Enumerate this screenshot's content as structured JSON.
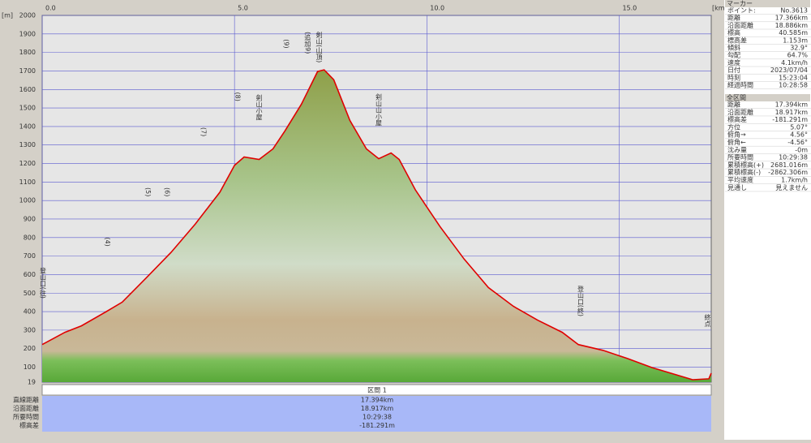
{
  "chart_data": {
    "type": "line",
    "x_label": "[km]",
    "y_label": "[m]",
    "x": [
      0,
      0.59,
      1.02,
      1.65,
      2.08,
      2.71,
      3.35,
      3.98,
      4.62,
      5.0,
      5.25,
      5.64,
      6.0,
      6.31,
      6.74,
      7.16,
      7.33,
      7.58,
      8.0,
      8.43,
      8.75,
      9.07,
      9.28,
      9.7,
      10.34,
      10.97,
      11.6,
      12.25,
      12.88,
      13.52,
      13.94,
      14.58,
      15.21,
      15.85,
      16.48,
      16.91,
      17.33,
      17.394
    ],
    "values": [
      222,
      288,
      323,
      398,
      451,
      583,
      720,
      873,
      1045,
      1190,
      1235,
      1222,
      1279,
      1376,
      1521,
      1697,
      1706,
      1653,
      1433,
      1279,
      1226,
      1257,
      1222,
      1058,
      860,
      684,
      530,
      429,
      354,
      288,
      222,
      191,
      147,
      98,
      59,
      32,
      37,
      67
    ],
    "color": "#e00000",
    "xlim": [
      0,
      17.394
    ],
    "ylim": [
      19,
      2000
    ],
    "xticks": [
      {
        "value": 0,
        "label": "0.0"
      },
      {
        "value": 5,
        "label": "5.0"
      },
      {
        "value": 10,
        "label": "10.0"
      },
      {
        "value": 15,
        "label": "15.0"
      }
    ],
    "yticks": [
      19,
      100,
      200,
      300,
      400,
      500,
      600,
      700,
      800,
      900,
      1000,
      1100,
      1200,
      1300,
      1400,
      1500,
      1600,
      1700,
      1800,
      1900,
      2000
    ],
    "grid": true,
    "annotations": [
      {
        "text": "登山口(往)",
        "x": 0.02
      },
      {
        "text": "(4)",
        "x": 1.7
      },
      {
        "text": "(5)",
        "x": 2.75
      },
      {
        "text": "(6)",
        "x": 3.25
      },
      {
        "text": "(7)",
        "x": 4.2
      },
      {
        "text": "(8)",
        "x": 5.08
      },
      {
        "text": "剣山小屋",
        "x": 5.64
      },
      {
        "text": "(9)",
        "x": 6.35
      },
      {
        "text": "(追加9)",
        "x": 6.9
      },
      {
        "text": "剣山(山頂)",
        "x": 7.2
      },
      {
        "text": "剣山山小屋",
        "x": 8.75
      },
      {
        "text": "登山口(終)",
        "x": 14.0
      },
      {
        "text": "終点",
        "x": 17.3
      }
    ]
  },
  "section": {
    "title": "区間 1",
    "labels": [
      "直線距離",
      "沿面距離",
      "所要時間",
      "標高差"
    ],
    "values": [
      "17.394km",
      "18.917km",
      "10:29:38",
      "-181.291m"
    ]
  },
  "marker_panel": {
    "title": "マーカー",
    "rows": [
      [
        "ポイント:",
        "No.3613"
      ],
      [
        "距離",
        "17.366km"
      ],
      [
        "沿面距離",
        "18.886km"
      ],
      [
        "標高",
        "40.585m"
      ],
      [
        "標高差",
        "1.153m"
      ],
      [
        "傾斜",
        "32.9°"
      ],
      [
        "勾配",
        "64.7%"
      ],
      [
        "速度",
        "4.1km/h"
      ],
      [
        "日付",
        "2023/07/04"
      ],
      [
        "時刻",
        "15:23:04"
      ],
      [
        "経過時間",
        "10:28:58"
      ]
    ]
  },
  "total_panel": {
    "title": "全区間",
    "rows": [
      [
        "距離",
        "17.394km"
      ],
      [
        "沿面距離",
        "18.917km"
      ],
      [
        "標高差",
        "-181.291m"
      ],
      [
        "方位",
        "5.07°"
      ],
      [
        "俯角→",
        "4.56°"
      ],
      [
        "俯角←",
        "-4.56°"
      ],
      [
        "沈み量",
        "-0m"
      ],
      [
        "所要時間",
        "10:29:38"
      ],
      [
        "累積標高(+)",
        "2681.016m"
      ],
      [
        "累積標高(-)",
        "-2862.306m"
      ],
      [
        "平均速度",
        "1.7km/h"
      ],
      [
        "見通し",
        "見えません"
      ]
    ]
  }
}
